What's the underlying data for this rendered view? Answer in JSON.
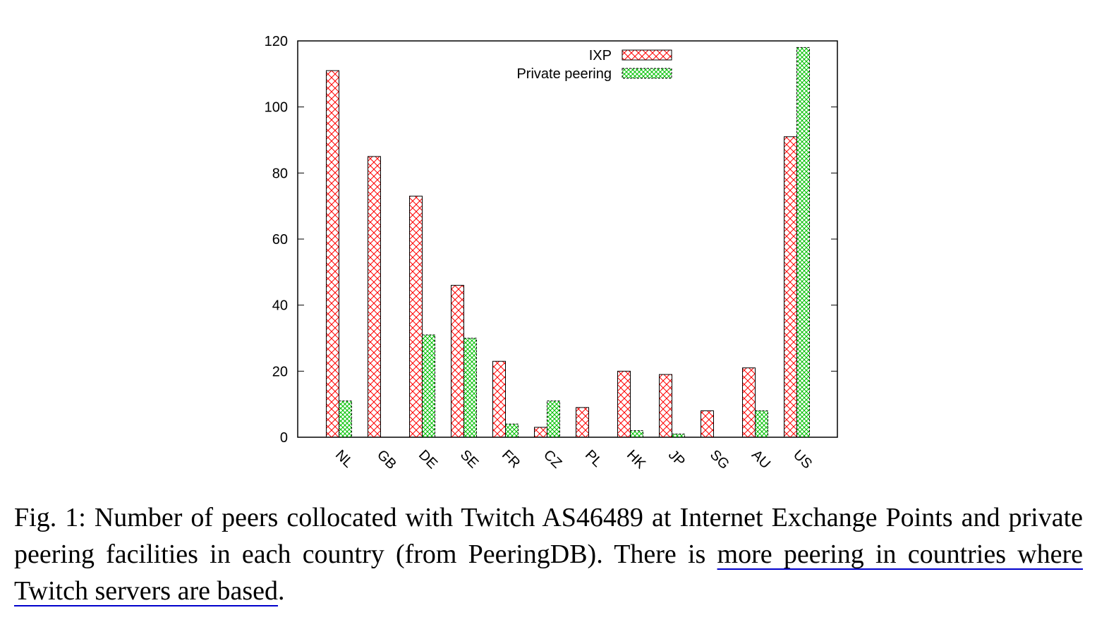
{
  "chart_data": {
    "type": "bar",
    "categories": [
      "NL",
      "GB",
      "DE",
      "SE",
      "FR",
      "CZ",
      "PL",
      "HK",
      "JP",
      "SG",
      "AU",
      "US"
    ],
    "series": [
      {
        "name": "IXP",
        "values": [
          111,
          85,
          73,
          46,
          23,
          3,
          9,
          20,
          19,
          8,
          21,
          91
        ],
        "color": "#ff0000",
        "pattern": "crosshatch"
      },
      {
        "name": "Private peering",
        "values": [
          11,
          0,
          31,
          30,
          4,
          11,
          0,
          2,
          1,
          0,
          8,
          118
        ],
        "color": "#00c000",
        "pattern": "dense-crosshatch"
      }
    ],
    "yticks": [
      0,
      20,
      40,
      60,
      80,
      100,
      120
    ],
    "ylim": [
      0,
      120
    ],
    "xlabel": "",
    "ylabel": "",
    "legend_position": "top-right",
    "grid": false
  },
  "caption": {
    "label": "Fig. 1:",
    "text": "Number of peers collocated with Twitch AS46489 at Internet Exchange Points and private peering facilities in each country (from PeeringDB). There is",
    "link_text": "more peering in countries where Twitch servers are based",
    "end": "."
  }
}
